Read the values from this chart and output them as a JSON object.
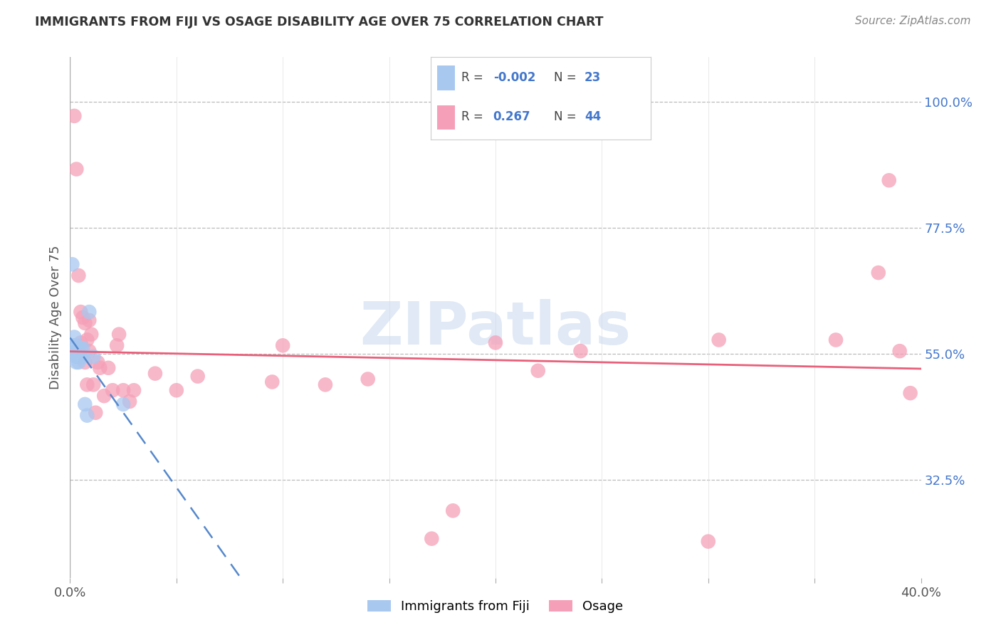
{
  "title": "IMMIGRANTS FROM FIJI VS OSAGE DISABILITY AGE OVER 75 CORRELATION CHART",
  "source": "Source: ZipAtlas.com",
  "ylabel": "Disability Age Over 75",
  "xlim": [
    0.0,
    0.4
  ],
  "ylim": [
    0.15,
    1.08
  ],
  "ytick_labels": [
    "32.5%",
    "55.0%",
    "77.5%",
    "100.0%"
  ],
  "ytick_vals": [
    0.325,
    0.55,
    0.775,
    1.0
  ],
  "grid_color": "#bbbbbb",
  "fiji_color": "#a8c8f0",
  "osage_color": "#f5a0b8",
  "fiji_line_color": "#5588cc",
  "osage_line_color": "#e8607a",
  "fiji_x": [
    0.001,
    0.002,
    0.002,
    0.003,
    0.003,
    0.003,
    0.003,
    0.003,
    0.003,
    0.004,
    0.004,
    0.004,
    0.004,
    0.005,
    0.005,
    0.005,
    0.006,
    0.006,
    0.007,
    0.008,
    0.009,
    0.011,
    0.025
  ],
  "fiji_y": [
    0.71,
    0.58,
    0.565,
    0.555,
    0.545,
    0.535,
    0.555,
    0.55,
    0.565,
    0.535,
    0.545,
    0.55,
    0.555,
    0.545,
    0.555,
    0.56,
    0.545,
    0.56,
    0.46,
    0.44,
    0.625,
    0.545,
    0.46
  ],
  "osage_x": [
    0.002,
    0.003,
    0.004,
    0.005,
    0.005,
    0.006,
    0.007,
    0.007,
    0.008,
    0.008,
    0.009,
    0.009,
    0.01,
    0.011,
    0.012,
    0.013,
    0.014,
    0.016,
    0.018,
    0.02,
    0.022,
    0.023,
    0.025,
    0.028,
    0.03,
    0.04,
    0.05,
    0.06,
    0.095,
    0.1,
    0.12,
    0.14,
    0.17,
    0.18,
    0.2,
    0.22,
    0.24,
    0.3,
    0.305,
    0.36,
    0.38,
    0.385,
    0.39,
    0.395
  ],
  "osage_y": [
    0.975,
    0.88,
    0.69,
    0.625,
    0.57,
    0.615,
    0.605,
    0.535,
    0.575,
    0.495,
    0.61,
    0.555,
    0.585,
    0.495,
    0.445,
    0.535,
    0.525,
    0.475,
    0.525,
    0.485,
    0.565,
    0.585,
    0.485,
    0.465,
    0.485,
    0.515,
    0.485,
    0.51,
    0.5,
    0.565,
    0.495,
    0.505,
    0.22,
    0.27,
    0.57,
    0.52,
    0.555,
    0.215,
    0.575,
    0.575,
    0.695,
    0.86,
    0.555,
    0.48
  ]
}
